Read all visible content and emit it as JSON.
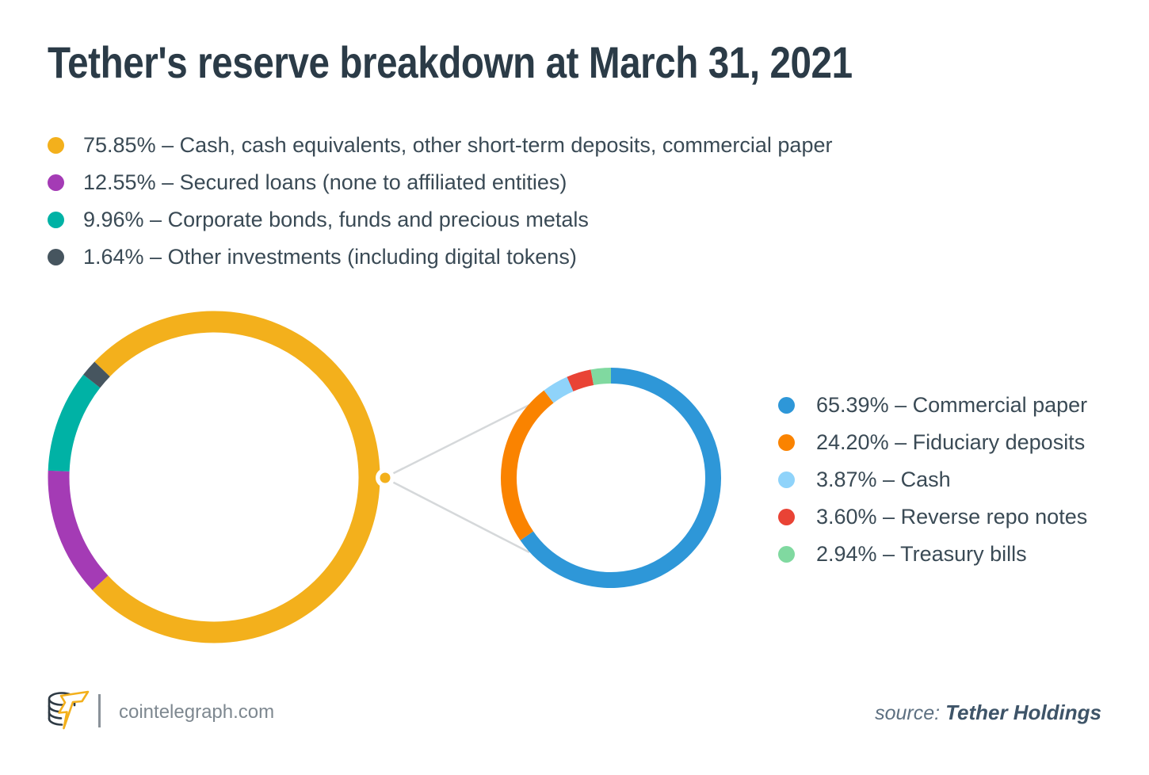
{
  "title": "Tether's reserve breakdown at March 31, 2021",
  "chart_data": [
    {
      "type": "pie",
      "subtype": "donut",
      "name": "total-reserves",
      "legend_position": "top-left",
      "start_angle": -46,
      "segments": [
        {
          "value": 75.85,
          "label": "Cash, cash equivalents, other short-term deposits, commercial paper",
          "color": "#F3B01C",
          "display": "75.85% – Cash, cash equivalents, other short-term deposits, commercial paper"
        },
        {
          "value": 12.55,
          "label": "Secured loans (none to affiliated entities)",
          "color": "#A43BB5",
          "display": "12.55% – Secured loans (none to affiliated entities)"
        },
        {
          "value": 9.96,
          "label": "Corporate bonds, funds and precious metals",
          "color": "#00B2A5",
          "display": "9.96% – Corporate bonds, funds and precious metals"
        },
        {
          "value": 1.64,
          "label": "Other investments (including digital tokens)",
          "color": "#46555F",
          "display": "1.64% – Other investments (including digital tokens)"
        }
      ]
    },
    {
      "type": "pie",
      "subtype": "donut",
      "name": "cash-category-breakdown",
      "legend_position": "right",
      "start_angle": 0,
      "zoom_of": {
        "chart": 0,
        "segment": 0
      },
      "segments": [
        {
          "value": 65.39,
          "label": "Commercial paper",
          "color": "#2E97D8",
          "display": "65.39% – Commercial paper"
        },
        {
          "value": 24.2,
          "label": "Fiduciary deposits",
          "color": "#FA8300",
          "display": "24.20% – Fiduciary deposits"
        },
        {
          "value": 3.87,
          "label": "Cash",
          "color": "#8FD3FA",
          "display": "3.87% – Cash"
        },
        {
          "value": 3.6,
          "label": "Reverse repo notes",
          "color": "#E94335",
          "display": "3.60% – Reverse repo notes"
        },
        {
          "value": 2.94,
          "label": "Treasury bills",
          "color": "#80D9A0",
          "display": "2.94% – Treasury bills"
        }
      ]
    }
  ],
  "connector": {
    "color": "#D5D8DA"
  },
  "footer": {
    "site": "cointelegraph.com",
    "source_prefix": "source:",
    "source_name": "Tether Holdings"
  }
}
